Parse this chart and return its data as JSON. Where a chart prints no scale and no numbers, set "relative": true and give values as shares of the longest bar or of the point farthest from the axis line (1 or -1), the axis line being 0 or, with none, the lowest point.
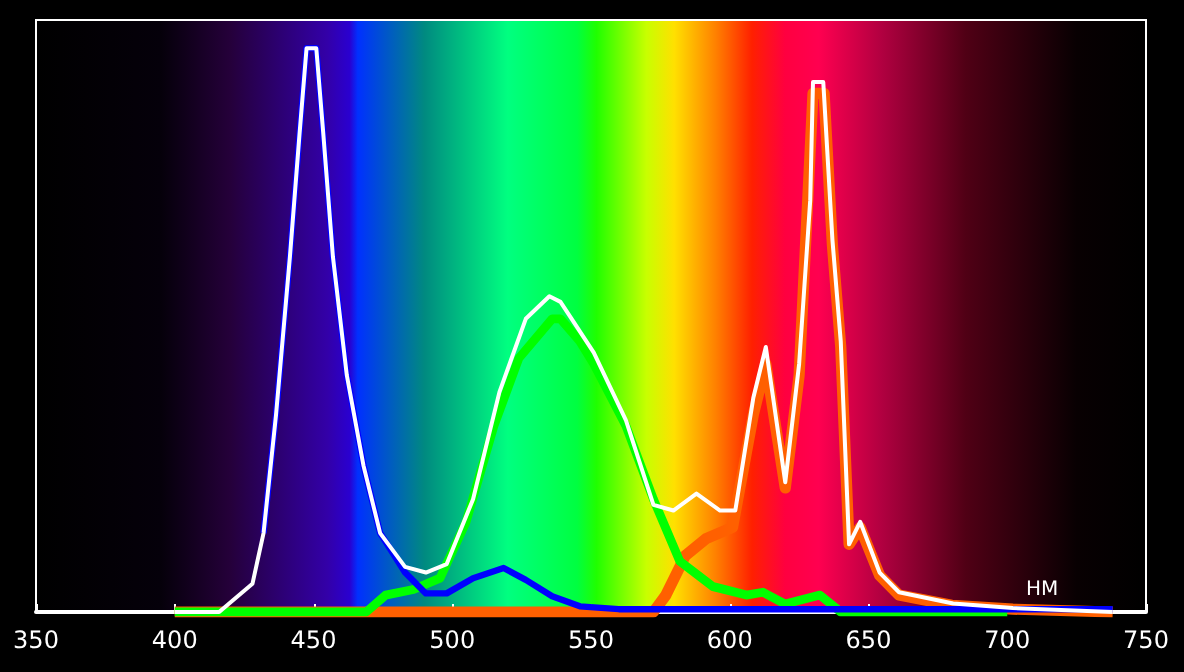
{
  "chart_data": {
    "type": "line",
    "relative": true,
    "xlabel": "НМ",
    "xlim": [
      350,
      750
    ],
    "xticks": [
      350,
      400,
      450,
      500,
      550,
      600,
      650,
      700,
      750
    ],
    "grid": false,
    "marker": "none",
    "line_style": "solid",
    "series": [
      {
        "color": "#ff6000",
        "x": [
          400,
          560,
          572.5,
          577,
          584,
          591.5,
          601,
          608.5,
          613,
          620,
          625,
          630,
          634,
          637,
          640,
          643,
          647,
          654,
          661,
          680,
          702,
          738
        ],
        "values": [
          0,
          0,
          0,
          0.03,
          0.1,
          0.13,
          0.15,
          0.35,
          0.44,
          0.22,
          0.42,
          0.92,
          0.92,
          0.65,
          0.47,
          0.12,
          0.15,
          0.065,
          0.03,
          0.012,
          0.005,
          0
        ]
      },
      {
        "color": "#00ff00",
        "x": [
          400,
          469,
          476,
          486,
          495.6,
          505,
          515,
          524,
          536,
          539,
          546,
          551,
          562.6,
          572.5,
          582,
          594,
          606,
          612,
          620,
          632.5,
          640,
          700
        ],
        "values": [
          0,
          0,
          0.03,
          0.04,
          0.06,
          0.16,
          0.33,
          0.45,
          0.52,
          0.52,
          0.48,
          0.44,
          0.33,
          0.2,
          0.09,
          0.045,
          0.03,
          0.035,
          0.014,
          0.03,
          0,
          0
        ]
      },
      {
        "color": "#0000ff",
        "x": [
          432,
          436.5,
          441.5,
          445,
          447.5,
          451,
          453.5,
          457,
          462,
          468,
          474,
          483,
          490.5,
          498,
          507.5,
          518.5,
          526.5,
          536,
          546,
          560,
          738
        ],
        "values": [
          0.14,
          0.35,
          0.63,
          0.85,
          1.0,
          1.0,
          0.85,
          0.63,
          0.42,
          0.26,
          0.14,
          0.07,
          0.033,
          0.033,
          0.06,
          0.078,
          0.057,
          0.028,
          0.01,
          0.005,
          0.005
        ]
      },
      {
        "color": "#ffffff",
        "x": [
          400,
          416,
          428,
          432,
          436.5,
          441.5,
          445,
          447.5,
          451,
          453.5,
          457,
          462,
          468,
          474,
          483,
          490.5,
          498,
          507.5,
          517,
          526.5,
          535,
          539,
          551,
          562.6,
          572.5,
          579.7,
          588,
          596.5,
          602,
          608.5,
          613,
          620,
          625,
          629,
          630,
          633.7,
          637,
          640,
          643,
          647,
          654,
          661,
          680.5,
          702,
          738
        ],
        "values": [
          0,
          0,
          0.05,
          0.14,
          0.35,
          0.63,
          0.85,
          1.0,
          1.0,
          0.85,
          0.63,
          0.42,
          0.26,
          0.14,
          0.08,
          0.07,
          0.085,
          0.2,
          0.39,
          0.52,
          0.56,
          0.55,
          0.46,
          0.34,
          0.19,
          0.18,
          0.21,
          0.18,
          0.18,
          0.38,
          0.47,
          0.23,
          0.44,
          0.73,
          0.94,
          0.94,
          0.66,
          0.48,
          0.12,
          0.16,
          0.07,
          0.035,
          0.015,
          0.007,
          0
        ]
      }
    ]
  }
}
